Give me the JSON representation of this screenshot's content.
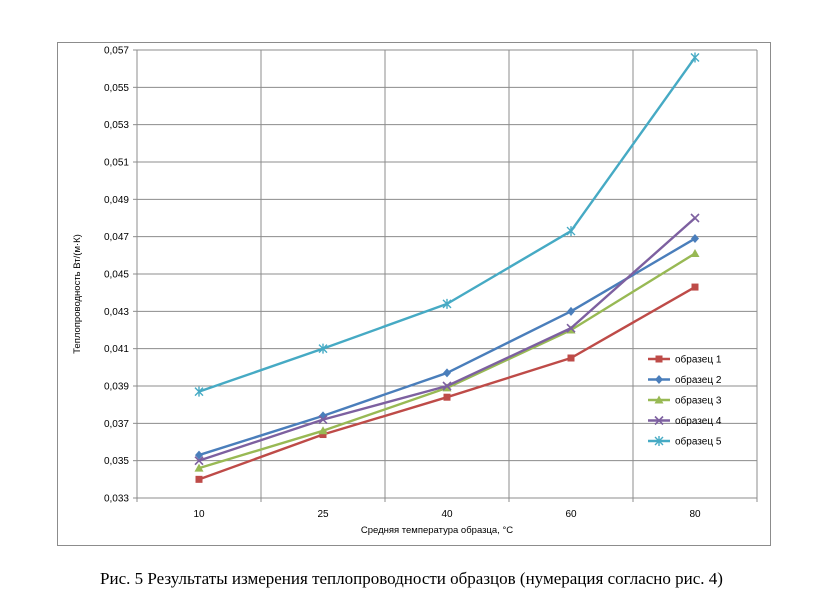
{
  "caption": "Рис. 5 Результаты измерения теплопроводности образцов (нумерация согласно рис. 4)",
  "chart_data": {
    "type": "line",
    "title": "",
    "xlabel": "Средняя температура образца, °С",
    "ylabel": "Теплопроводность  Вт/(м·К)",
    "categories": [
      "10",
      "25",
      "40",
      "60",
      "80"
    ],
    "ylim": [
      0.033,
      0.057
    ],
    "yticks": [
      "0,033",
      "0,035",
      "0,037",
      "0,039",
      "0,041",
      "0,043",
      "0,045",
      "0,047",
      "0,049",
      "0,051",
      "0,053",
      "0,055",
      "0,057"
    ],
    "grid": true,
    "legend_position": "right",
    "series": [
      {
        "name": "образец 1",
        "color": "#be4b48",
        "marker": "square",
        "values": [
          0.034,
          0.0364,
          0.0384,
          0.0405,
          0.0443
        ]
      },
      {
        "name": "образец 2",
        "color": "#4a7ebb",
        "marker": "diamond",
        "values": [
          0.0353,
          0.0374,
          0.0397,
          0.043,
          0.0469
        ]
      },
      {
        "name": "образец 3",
        "color": "#98b954",
        "marker": "triangle",
        "values": [
          0.0346,
          0.0366,
          0.0389,
          0.042,
          0.0461
        ]
      },
      {
        "name": "образец 4",
        "color": "#7d60a0",
        "marker": "x",
        "values": [
          0.035,
          0.0372,
          0.039,
          0.0421,
          0.048
        ]
      },
      {
        "name": "образец 5",
        "color": "#46aac4",
        "marker": "star",
        "values": [
          0.0387,
          0.041,
          0.0434,
          0.0473,
          0.0566
        ]
      }
    ]
  }
}
